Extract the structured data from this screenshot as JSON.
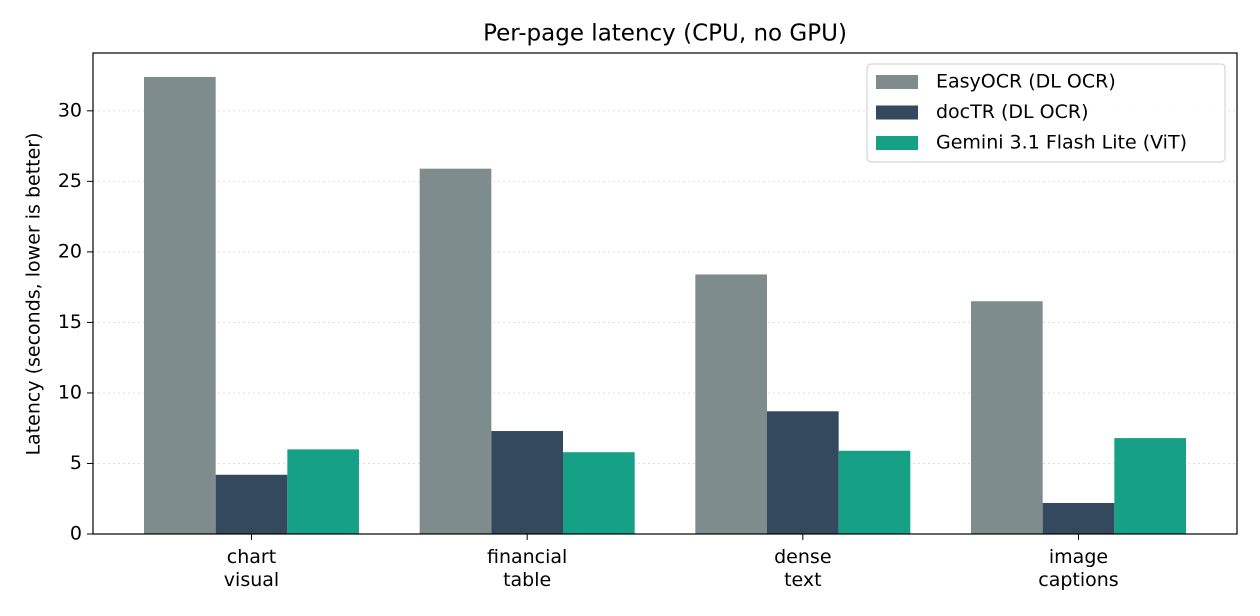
{
  "chart_data": {
    "type": "bar",
    "title": "Per-page latency (CPU, no GPU)",
    "y_label": "Latency (seconds, lower is better)",
    "categories": [
      "chart\nvisual",
      "financial\ntable",
      "dense\ntext",
      "image\ncaptions"
    ],
    "series": [
      {
        "name": "EasyOCR (DL OCR)",
        "color": "#7f8c8d",
        "values": [
          32.4,
          25.9,
          18.4,
          16.5
        ]
      },
      {
        "name": "docTR (DL OCR)",
        "color": "#34495e",
        "values": [
          4.2,
          7.3,
          8.7,
          2.2
        ]
      },
      {
        "name": "Gemini 3.1 Flash Lite (ViT)",
        "color": "#16a085",
        "values": [
          6.0,
          5.8,
          5.9,
          6.8
        ]
      }
    ],
    "ylim": [
      0,
      34.1
    ],
    "yticks": [
      0,
      5,
      10,
      15,
      20,
      25,
      30
    ],
    "grid": true,
    "legend": "upper right"
  }
}
